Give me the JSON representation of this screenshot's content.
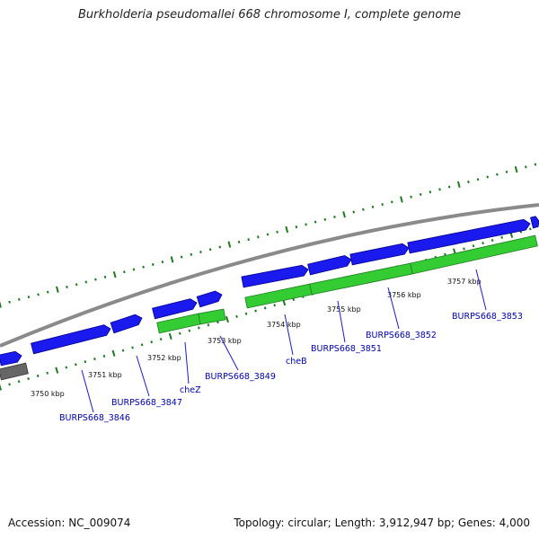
{
  "title": "Burkholderia pseudomallei 668 chromosome I, complete genome",
  "footer": {
    "accession": "Accession: NC_009074",
    "summary": "Topology: circular; Length: 3,912,947 bp; Genes: 4,000"
  },
  "colors": {
    "backbone": "#8a8a8a",
    "forward_gene": "#1a1aee",
    "reverse_gene": "#33cc33",
    "reverse_gene_dark": "#1f7a1f",
    "rna_gene": "#666666",
    "tick": "#1f7a1f",
    "label": "#0000aa"
  },
  "scale_labels": [
    "3750 kbp",
    "3751 kbp",
    "3752 kbp",
    "3753 kbp",
    "3754 kbp",
    "3755 kbp",
    "3756 kbp",
    "3757 kbp"
  ],
  "gene_labels": [
    "BURPS668_3846",
    "BURPS668_3847",
    "cheZ",
    "BURPS668_3849",
    "cheB",
    "BURPS668_3851",
    "BURPS668_3852",
    "BURPS668_3853"
  ]
}
